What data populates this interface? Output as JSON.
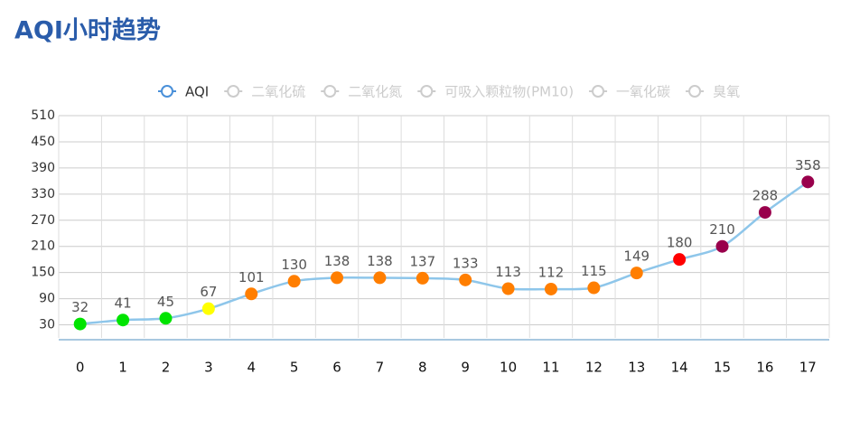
{
  "chart_data": {
    "type": "line",
    "title": "AQI小时趋势",
    "legend": [
      "AQI",
      "二氧化硫",
      "二氧化氮",
      "可吸入颗粒物(PM10)",
      "一氧化碳",
      "臭氧"
    ],
    "categories": [
      "0",
      "1",
      "2",
      "3",
      "4",
      "5",
      "6",
      "7",
      "8",
      "9",
      "10",
      "11",
      "12",
      "13",
      "14",
      "15",
      "16",
      "17"
    ],
    "series": [
      {
        "name": "AQI",
        "color": "#8ec6ea",
        "values": [
          32,
          41,
          45,
          67,
          101,
          130,
          138,
          138,
          137,
          133,
          113,
          112,
          115,
          149,
          180,
          210,
          288,
          358
        ],
        "point_colors": [
          "#00e400",
          "#00e400",
          "#00e400",
          "#ffff00",
          "#ff7e00",
          "#ff7e00",
          "#ff7e00",
          "#ff7e00",
          "#ff7e00",
          "#ff7e00",
          "#ff7e00",
          "#ff7e00",
          "#ff7e00",
          "#ff7e00",
          "#ff0000",
          "#99004c",
          "#99004c",
          "#99004c"
        ]
      }
    ],
    "ylim": [
      0,
      510
    ],
    "yticks": [
      30,
      90,
      150,
      210,
      270,
      330,
      390,
      450,
      510
    ],
    "grid": true
  }
}
